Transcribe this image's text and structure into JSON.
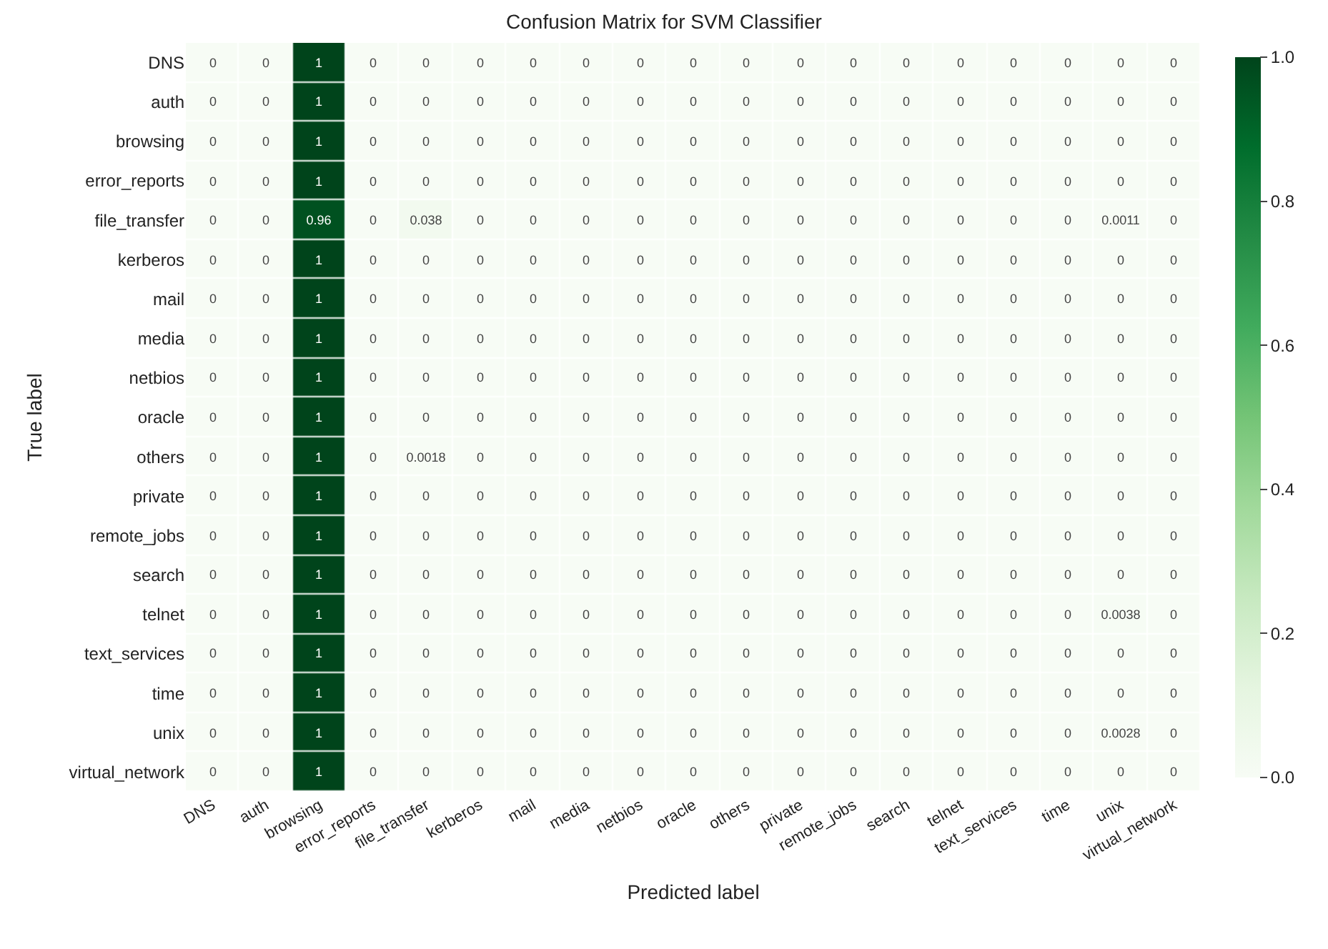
{
  "chart_data": {
    "type": "heatmap",
    "title": "Confusion Matrix for SVM Classifier",
    "xlabel": "Predicted label",
    "ylabel": "True label",
    "categories": [
      "DNS",
      "auth",
      "browsing",
      "error_reports",
      "file_transfer",
      "kerberos",
      "mail",
      "media",
      "netbios",
      "oracle",
      "others",
      "private",
      "remote_jobs",
      "search",
      "telnet",
      "text_services",
      "time",
      "unix",
      "virtual_network"
    ],
    "y_categories": [
      "DNS",
      "auth",
      "browsing",
      "error_reports",
      "file_transfer",
      "kerberos",
      "mail",
      "media",
      "netbios",
      "oracle",
      "others",
      "private",
      "remote_jobs",
      "search",
      "telnet",
      "text_services",
      "time",
      "unix",
      "virtual_network"
    ],
    "cells": [
      [
        0,
        0,
        1,
        0,
        0,
        0,
        0,
        0,
        0,
        0,
        0,
        0,
        0,
        0,
        0,
        0,
        0,
        0,
        0
      ],
      [
        0,
        0,
        1,
        0,
        0,
        0,
        0,
        0,
        0,
        0,
        0,
        0,
        0,
        0,
        0,
        0,
        0,
        0,
        0
      ],
      [
        0,
        0,
        1,
        0,
        0,
        0,
        0,
        0,
        0,
        0,
        0,
        0,
        0,
        0,
        0,
        0,
        0,
        0,
        0
      ],
      [
        0,
        0,
        1,
        0,
        0,
        0,
        0,
        0,
        0,
        0,
        0,
        0,
        0,
        0,
        0,
        0,
        0,
        0,
        0
      ],
      [
        0,
        0,
        0.96,
        0,
        0.038,
        0,
        0,
        0,
        0,
        0,
        0,
        0,
        0,
        0,
        0,
        0,
        0,
        0.0011,
        0
      ],
      [
        0,
        0,
        1,
        0,
        0,
        0,
        0,
        0,
        0,
        0,
        0,
        0,
        0,
        0,
        0,
        0,
        0,
        0,
        0
      ],
      [
        0,
        0,
        1,
        0,
        0,
        0,
        0,
        0,
        0,
        0,
        0,
        0,
        0,
        0,
        0,
        0,
        0,
        0,
        0
      ],
      [
        0,
        0,
        1,
        0,
        0,
        0,
        0,
        0,
        0,
        0,
        0,
        0,
        0,
        0,
        0,
        0,
        0,
        0,
        0
      ],
      [
        0,
        0,
        1,
        0,
        0,
        0,
        0,
        0,
        0,
        0,
        0,
        0,
        0,
        0,
        0,
        0,
        0,
        0,
        0
      ],
      [
        0,
        0,
        1,
        0,
        0,
        0,
        0,
        0,
        0,
        0,
        0,
        0,
        0,
        0,
        0,
        0,
        0,
        0,
        0
      ],
      [
        0,
        0,
        1,
        0,
        0.0018,
        0,
        0,
        0,
        0,
        0,
        0,
        0,
        0,
        0,
        0,
        0,
        0,
        0,
        0
      ],
      [
        0,
        0,
        1,
        0,
        0,
        0,
        0,
        0,
        0,
        0,
        0,
        0,
        0,
        0,
        0,
        0,
        0,
        0,
        0
      ],
      [
        0,
        0,
        1,
        0,
        0,
        0,
        0,
        0,
        0,
        0,
        0,
        0,
        0,
        0,
        0,
        0,
        0,
        0,
        0
      ],
      [
        0,
        0,
        1,
        0,
        0,
        0,
        0,
        0,
        0,
        0,
        0,
        0,
        0,
        0,
        0,
        0,
        0,
        0,
        0
      ],
      [
        0,
        0,
        1,
        0,
        0,
        0,
        0,
        0,
        0,
        0,
        0,
        0,
        0,
        0,
        0,
        0,
        0,
        0.0038,
        0
      ],
      [
        0,
        0,
        1,
        0,
        0,
        0,
        0,
        0,
        0,
        0,
        0,
        0,
        0,
        0,
        0,
        0,
        0,
        0,
        0
      ],
      [
        0,
        0,
        1,
        0,
        0,
        0,
        0,
        0,
        0,
        0,
        0,
        0,
        0,
        0,
        0,
        0,
        0,
        0,
        0
      ],
      [
        0,
        0,
        1,
        0,
        0,
        0,
        0,
        0,
        0,
        0,
        0,
        0,
        0,
        0,
        0,
        0,
        0,
        0.0028,
        0
      ],
      [
        0,
        0,
        1,
        0,
        0,
        0,
        0,
        0,
        0,
        0,
        0,
        0,
        0,
        0,
        0,
        0,
        0,
        0,
        0
      ]
    ],
    "data_labels": true,
    "clim": [
      0,
      1
    ],
    "cticks": [
      {
        "value": 0,
        "label": "0.0"
      },
      {
        "value": 0.2,
        "label": "0.2"
      },
      {
        "value": 0.4,
        "label": "0.4"
      },
      {
        "value": 0.6,
        "label": "0.6"
      },
      {
        "value": 0.8,
        "label": "0.8"
      },
      {
        "value": 1,
        "label": "1.0"
      }
    ]
  }
}
